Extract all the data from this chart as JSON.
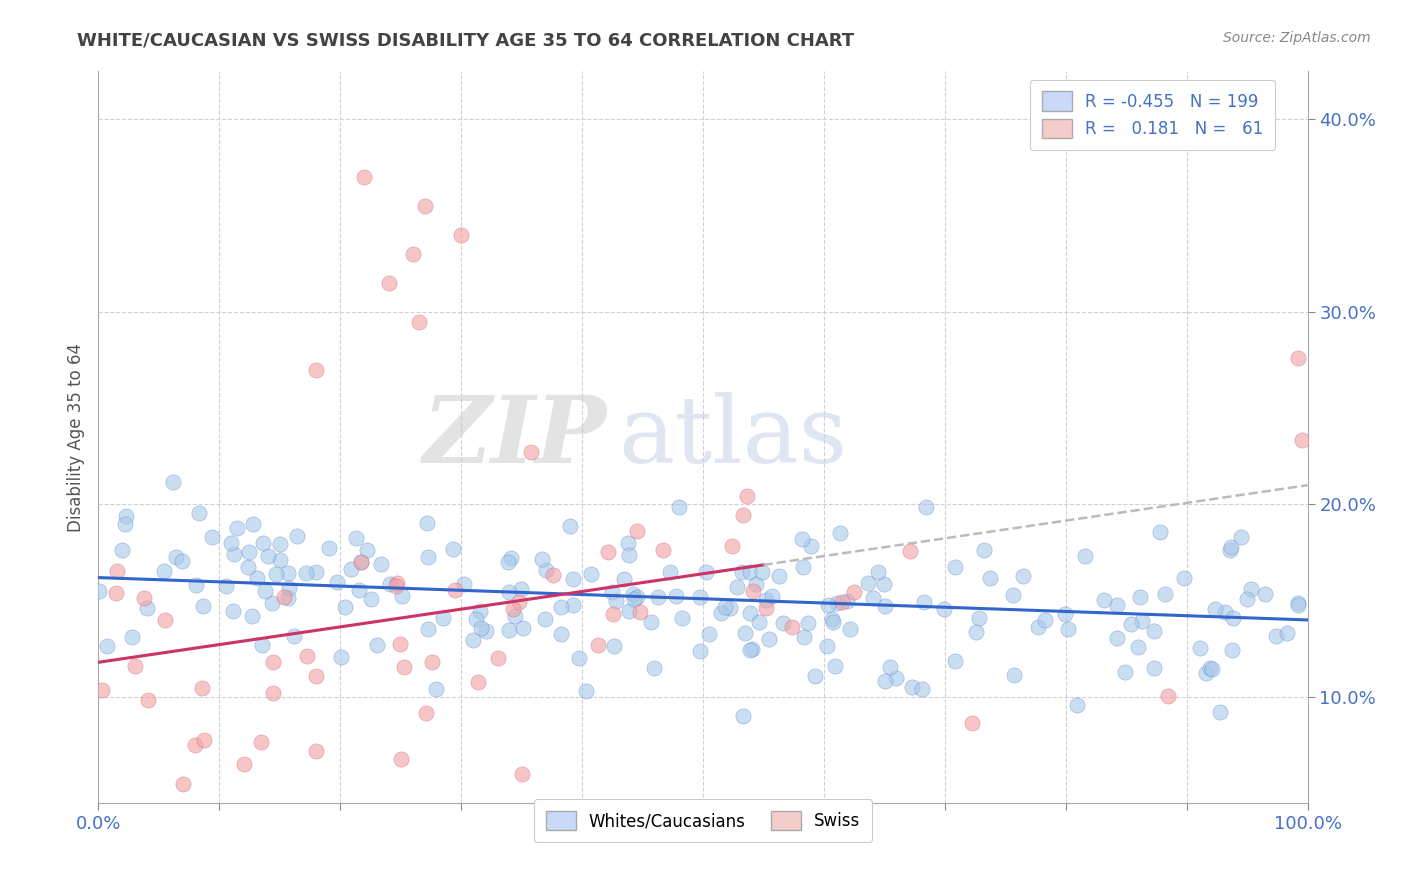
{
  "title": "WHITE/CAUCASIAN VS SWISS DISABILITY AGE 35 TO 64 CORRELATION CHART",
  "source": "Source: ZipAtlas.com",
  "ylabel": "Disability Age 35 to 64",
  "watermark_zip": "ZIP",
  "watermark_atlas": "atlas",
  "xlim": [
    0.0,
    1.0
  ],
  "ylim": [
    0.045,
    0.425
  ],
  "xticks": [
    0.0,
    0.1,
    0.2,
    0.3,
    0.4,
    0.5,
    0.6,
    0.7,
    0.8,
    0.9,
    1.0
  ],
  "yticks": [
    0.1,
    0.2,
    0.3,
    0.4
  ],
  "blue_R": -0.455,
  "blue_N": 199,
  "pink_R": 0.181,
  "pink_N": 61,
  "blue_color": "#a8c8e8",
  "pink_color": "#f0a0a0",
  "blue_line_color": "#3366cc",
  "pink_line_color": "#cc3366",
  "blue_fill": "#c9daf8",
  "pink_fill": "#f4cccc",
  "title_color": "#434343",
  "source_color": "#888888",
  "axis_label_color": "#4472c4",
  "watermark_color_zip": "#c8c8c8",
  "watermark_color_atlas": "#d0d8e8",
  "background_color": "#ffffff",
  "blue_intercept": 0.162,
  "blue_slope": -0.022,
  "pink_intercept": 0.118,
  "pink_slope": 0.092
}
